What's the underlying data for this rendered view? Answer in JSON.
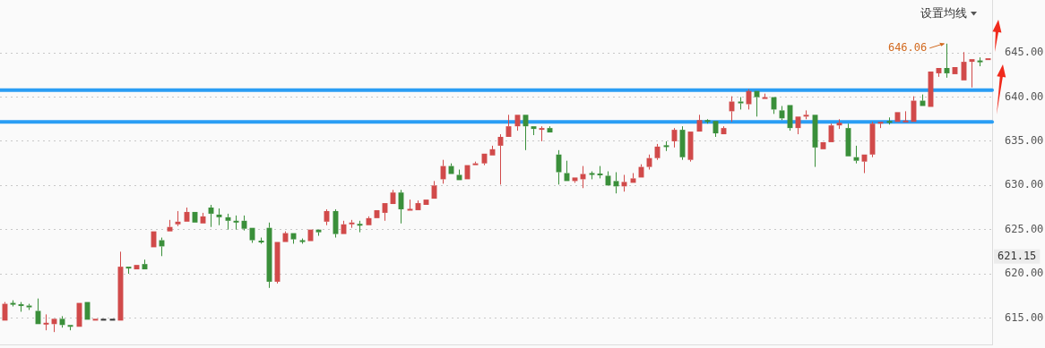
{
  "chart_data": {
    "type": "candlestick",
    "categories": [
      null,
      null,
      null,
      null,
      null,
      null,
      null,
      null,
      null,
      null,
      null,
      null,
      null,
      null,
      null,
      null,
      null,
      null,
      null,
      null,
      null,
      null,
      null,
      null,
      null,
      null,
      null,
      null,
      null,
      null,
      null,
      null,
      null,
      null,
      null,
      null,
      null,
      null,
      null,
      null,
      null,
      null,
      null,
      null,
      null,
      null,
      null,
      null,
      null,
      null,
      null,
      null,
      null,
      null,
      null,
      null,
      null,
      null,
      null,
      null,
      null,
      null,
      null,
      null,
      null,
      null,
      null,
      null,
      null,
      null,
      null,
      null,
      null,
      null,
      null,
      null,
      null,
      null,
      null,
      null,
      null,
      null,
      null,
      null,
      null,
      null,
      null,
      null,
      null,
      null,
      null,
      null,
      null,
      null,
      null,
      null,
      null,
      null,
      null,
      null,
      null,
      null,
      null,
      null,
      null,
      null,
      null,
      null,
      null,
      null,
      null,
      null,
      null,
      null,
      null,
      null,
      null,
      null,
      null,
      null
    ],
    "ohlc": [
      [
        614.7,
        616.8,
        614.7,
        616.6
      ],
      [
        616.6,
        617.0,
        616.3,
        616.6
      ],
      [
        616.5,
        616.8,
        615.7,
        616.4
      ],
      [
        616.4,
        616.6,
        615.9,
        616.2
      ],
      [
        615.8,
        617.2,
        614.3,
        614.3
      ],
      [
        614.3,
        615.4,
        613.6,
        614.4
      ],
      [
        614.3,
        614.9,
        613.4,
        614.9
      ],
      [
        614.9,
        615.2,
        613.9,
        614.2
      ],
      [
        614.2,
        614.2,
        613.6,
        614.0
      ],
      [
        614.0,
        616.7,
        614.0,
        616.7
      ],
      [
        616.8,
        616.9,
        614.8,
        614.8
      ],
      [
        614.8,
        614.8,
        614.8,
        614.8
      ],
      [
        614.8,
        614.8,
        614.8,
        614.8
      ],
      [
        614.8,
        614.8,
        614.8,
        614.8
      ],
      [
        614.7,
        622.5,
        614.7,
        620.8
      ],
      [
        620.8,
        620.9,
        620.0,
        620.6
      ],
      [
        620.5,
        621.1,
        620.5,
        621.0
      ],
      [
        621.1,
        621.6,
        620.4,
        620.5
      ],
      [
        623.0,
        624.8,
        622.9,
        624.8
      ],
      [
        623.8,
        624.1,
        622.0,
        623.1
      ],
      [
        624.8,
        626.1,
        624.7,
        625.3
      ],
      [
        625.6,
        627.1,
        625.4,
        625.9
      ],
      [
        625.9,
        627.5,
        625.9,
        627.0
      ],
      [
        627.0,
        627.0,
        625.8,
        625.8
      ],
      [
        625.7,
        626.9,
        625.7,
        626.5
      ],
      [
        627.5,
        627.8,
        625.3,
        626.8
      ],
      [
        626.7,
        627.4,
        625.5,
        626.4
      ],
      [
        626.4,
        626.8,
        625.0,
        626.0
      ],
      [
        625.9,
        626.6,
        625.0,
        625.9
      ],
      [
        626.0,
        626.6,
        624.9,
        625.1
      ],
      [
        625.2,
        625.2,
        623.5,
        623.8
      ],
      [
        623.7,
        624.1,
        623.4,
        623.6
      ],
      [
        625.2,
        625.8,
        618.4,
        619.1
      ],
      [
        619.1,
        623.6,
        618.9,
        623.6
      ],
      [
        623.6,
        624.8,
        623.6,
        624.6
      ],
      [
        624.6,
        624.6,
        623.4,
        623.9
      ],
      [
        623.7,
        624.0,
        623.4,
        623.7
      ],
      [
        623.7,
        625.0,
        623.7,
        625.0
      ],
      [
        625.0,
        625.0,
        624.3,
        624.7
      ],
      [
        625.9,
        627.3,
        625.5,
        627.1
      ],
      [
        627.1,
        627.3,
        624.1,
        624.5
      ],
      [
        624.5,
        626.0,
        624.5,
        625.6
      ],
      [
        625.6,
        626.1,
        625.2,
        625.8
      ],
      [
        625.6,
        626.0,
        624.7,
        625.5
      ],
      [
        625.5,
        626.5,
        625.4,
        626.3
      ],
      [
        626.3,
        627.3,
        626.3,
        627.2
      ],
      [
        626.9,
        628.1,
        626.0,
        628.0
      ],
      [
        627.9,
        629.5,
        627.9,
        629.2
      ],
      [
        629.2,
        629.5,
        625.7,
        627.3
      ],
      [
        627.2,
        628.4,
        627.2,
        627.3
      ],
      [
        627.2,
        628.3,
        627.2,
        628.0
      ],
      [
        627.8,
        628.5,
        627.8,
        628.4
      ],
      [
        628.5,
        630.5,
        628.4,
        630.0
      ],
      [
        630.7,
        632.9,
        630.2,
        632.2
      ],
      [
        632.2,
        632.5,
        631.3,
        631.3
      ],
      [
        631.2,
        631.8,
        630.6,
        630.6
      ],
      [
        630.7,
        632.4,
        630.6,
        632.3
      ],
      [
        632.3,
        632.7,
        632.2,
        632.5
      ],
      [
        632.5,
        633.7,
        632.3,
        633.6
      ],
      [
        633.4,
        634.5,
        633.4,
        634.1
      ],
      [
        634.5,
        635.8,
        630.1,
        635.5
      ],
      [
        635.5,
        638.0,
        635.5,
        636.7
      ],
      [
        636.7,
        638.0,
        636.2,
        638.0
      ],
      [
        638.0,
        638.0,
        634.0,
        636.7
      ],
      [
        636.7,
        636.8,
        635.7,
        636.4
      ],
      [
        636.3,
        636.7,
        635.0,
        636.5
      ],
      [
        636.5,
        636.7,
        636.0,
        636.0
      ],
      [
        633.5,
        634.0,
        630.1,
        631.5
      ],
      [
        631.4,
        632.8,
        630.5,
        630.5
      ],
      [
        630.5,
        630.9,
        630.3,
        630.9
      ],
      [
        630.7,
        632.2,
        629.7,
        631.3
      ],
      [
        631.3,
        631.6,
        630.7,
        631.3
      ],
      [
        631.3,
        632.2,
        630.8,
        631.2
      ],
      [
        631.1,
        631.6,
        630.0,
        630.0
      ],
      [
        630.5,
        631.5,
        629.1,
        629.9
      ],
      [
        629.9,
        631.2,
        629.3,
        630.4
      ],
      [
        630.3,
        631.4,
        630.3,
        630.8
      ],
      [
        630.9,
        632.4,
        630.8,
        632.1
      ],
      [
        632.1,
        633.5,
        631.8,
        633.1
      ],
      [
        633.1,
        634.7,
        632.9,
        634.4
      ],
      [
        634.5,
        635.0,
        633.9,
        634.4
      ],
      [
        635.0,
        636.5,
        634.3,
        636.3
      ],
      [
        636.3,
        636.7,
        632.9,
        633.2
      ],
      [
        632.9,
        636.2,
        632.7,
        636.1
      ],
      [
        636.1,
        638.0,
        636.0,
        637.4
      ],
      [
        637.3,
        637.5,
        637.0,
        637.3
      ],
      [
        637.3,
        637.4,
        635.5,
        635.9
      ],
      [
        635.8,
        636.7,
        635.7,
        636.5
      ],
      [
        638.4,
        640.1,
        637.2,
        639.5
      ],
      [
        639.5,
        640.0,
        638.6,
        639.3
      ],
      [
        639.2,
        640.9,
        638.6,
        640.7
      ],
      [
        640.7,
        640.7,
        637.8,
        640.0
      ],
      [
        639.8,
        640.4,
        639.8,
        640.0
      ],
      [
        640.0,
        640.0,
        638.1,
        638.6
      ],
      [
        638.5,
        639.0,
        637.4,
        637.6
      ],
      [
        639.1,
        639.1,
        636.2,
        636.5
      ],
      [
        636.5,
        637.8,
        635.8,
        637.8
      ],
      [
        637.8,
        638.5,
        637.5,
        638.0
      ],
      [
        638.0,
        638.0,
        632.1,
        634.3
      ],
      [
        634.1,
        634.9,
        634.1,
        634.9
      ],
      [
        634.9,
        637.0,
        634.9,
        636.8
      ],
      [
        636.8,
        637.5,
        636.4,
        637.1
      ],
      [
        636.5,
        637.0,
        633.3,
        633.3
      ],
      [
        633.2,
        634.5,
        632.5,
        632.8
      ],
      [
        632.7,
        633.5,
        631.4,
        633.5
      ],
      [
        633.5,
        637.2,
        633.2,
        637.0
      ],
      [
        637.0,
        637.3,
        636.5,
        637.2
      ],
      [
        637.2,
        637.7,
        636.9,
        637.2
      ],
      [
        637.2,
        638.4,
        637.2,
        638.3
      ],
      [
        637.2,
        638.4,
        637.2,
        637.3
      ],
      [
        637.2,
        640.1,
        637.2,
        639.6
      ],
      [
        639.6,
        640.3,
        639.0,
        639.0
      ],
      [
        638.9,
        643.0,
        638.9,
        642.9
      ],
      [
        642.7,
        643.4,
        642.3,
        643.3
      ],
      [
        643.3,
        646.06,
        642.2,
        642.7
      ],
      [
        642.6,
        643.5,
        642.6,
        643.4
      ],
      [
        641.9,
        645.1,
        641.9,
        644.0
      ],
      [
        644.0,
        644.3,
        641.1,
        644.3
      ],
      [
        644.1,
        644.5,
        643.5,
        644.0
      ],
      [
        644.2,
        644.4,
        644.2,
        644.4
      ]
    ],
    "colors": [
      "#d14a4a",
      "#3a8f3a",
      "#3a8f3a",
      "#3a8f3a",
      "#3a8f3a",
      "#d14a4a",
      "#d14a4a",
      "#3a8f3a",
      "#3a8f3a",
      "#d14a4a",
      "#3a8f3a",
      "#d14a4a",
      "#333333",
      "#333333",
      "#d14a4a",
      "#3a8f3a",
      "#d14a4a",
      "#3a8f3a",
      "#d14a4a",
      "#3a8f3a",
      "#d14a4a",
      "#d14a4a",
      "#d14a4a",
      "#3a8f3a",
      "#d14a4a",
      "#3a8f3a",
      "#3a8f3a",
      "#3a8f3a",
      "#3a8f3a",
      "#3a8f3a",
      "#3a8f3a",
      "#3a8f3a",
      "#3a8f3a",
      "#d14a4a",
      "#d14a4a",
      "#3a8f3a",
      "#3a8f3a",
      "#d14a4a",
      "#3a8f3a",
      "#d14a4a",
      "#3a8f3a",
      "#d14a4a",
      "#d14a4a",
      "#3a8f3a",
      "#d14a4a",
      "#d14a4a",
      "#d14a4a",
      "#d14a4a",
      "#3a8f3a",
      "#d14a4a",
      "#d14a4a",
      "#d14a4a",
      "#d14a4a",
      "#d14a4a",
      "#3a8f3a",
      "#3a8f3a",
      "#d14a4a",
      "#d14a4a",
      "#d14a4a",
      "#d14a4a",
      "#d14a4a",
      "#d14a4a",
      "#d14a4a",
      "#3a8f3a",
      "#3a8f3a",
      "#d14a4a",
      "#3a8f3a",
      "#3a8f3a",
      "#3a8f3a",
      "#d14a4a",
      "#d14a4a",
      "#3a8f3a",
      "#3a8f3a",
      "#3a8f3a",
      "#3a8f3a",
      "#d14a4a",
      "#d14a4a",
      "#d14a4a",
      "#d14a4a",
      "#d14a4a",
      "#3a8f3a",
      "#d14a4a",
      "#3a8f3a",
      "#d14a4a",
      "#d14a4a",
      "#3a8f3a",
      "#3a8f3a",
      "#d14a4a",
      "#d14a4a",
      "#3a8f3a",
      "#d14a4a",
      "#3a8f3a",
      "#d14a4a",
      "#3a8f3a",
      "#3a8f3a",
      "#3a8f3a",
      "#d14a4a",
      "#d14a4a",
      "#3a8f3a",
      "#d14a4a",
      "#d14a4a",
      "#d14a4a",
      "#3a8f3a",
      "#3a8f3a",
      "#d14a4a",
      "#d14a4a",
      "#d14a4a",
      "#3a8f3a",
      "#d14a4a",
      "#d14a4a",
      "#d14a4a",
      "#3a8f3a",
      "#d14a4a",
      "#d14a4a",
      "#3a8f3a",
      "#d14a4a",
      "#d14a4a",
      "#d14a4a",
      "#3a8f3a",
      "#d14a4a"
    ],
    "ylim": [
      612,
      651
    ],
    "yticks": [
      {
        "value": 615,
        "label": "615.00"
      },
      {
        "value": 620,
        "label": "620.00"
      },
      {
        "value": 625,
        "label": "625.00"
      },
      {
        "value": 630,
        "label": "630.00"
      },
      {
        "value": 635,
        "label": "635.00"
      },
      {
        "value": 640,
        "label": "640.00"
      },
      {
        "value": 645,
        "label": "645.00"
      }
    ],
    "grid": "y",
    "tick_labels": "y",
    "ref_lines": [
      {
        "axis": "y",
        "value": 640.8,
        "color": "#2a9df4"
      },
      {
        "axis": "y",
        "value": 637.2,
        "color": "#2a9df4"
      }
    ],
    "annotations": [
      "设置均线",
      "646.06",
      "621.15"
    ]
  }
}
